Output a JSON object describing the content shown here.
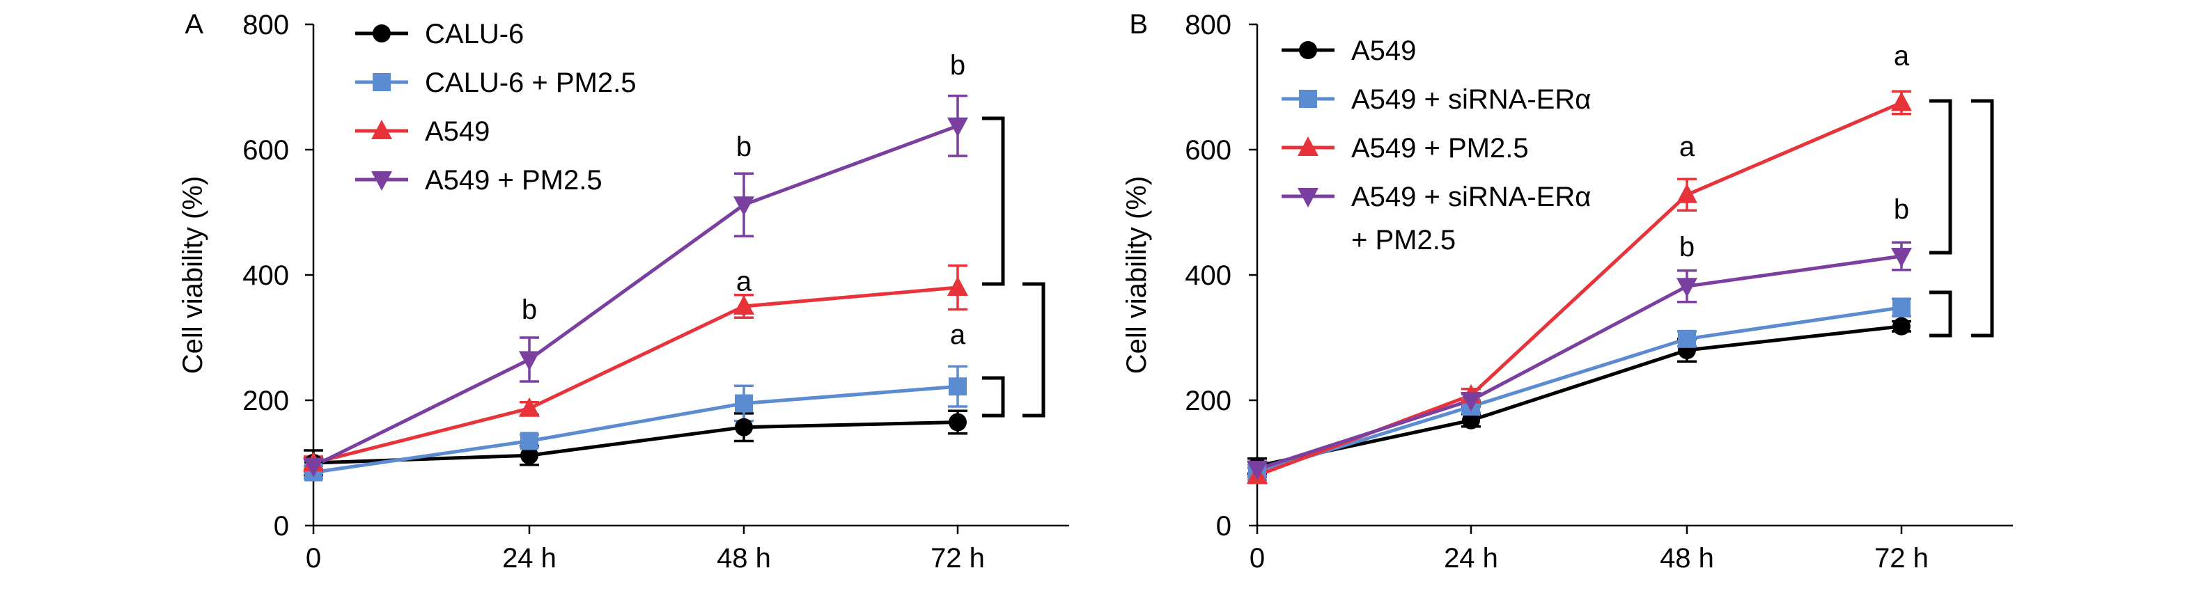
{
  "chart_data": [
    {
      "type": "line",
      "panel_label": "A",
      "ylabel": "Cell viability (%)",
      "xlabel": "",
      "categories": [
        "0",
        "24 h",
        "48 h",
        "72 h"
      ],
      "y_ticks": [
        "0",
        "200",
        "400",
        "600",
        "800"
      ],
      "ylim": [
        0,
        800
      ],
      "grid": false,
      "legend_position": "top-left",
      "series": [
        {
          "name": "CALU-6",
          "marker": "circle",
          "color": "#000000",
          "values": [
            100,
            112,
            157,
            165
          ],
          "errors": [
            20,
            15,
            22,
            18
          ]
        },
        {
          "name": "CALU-6 + PM2.5",
          "marker": "square",
          "color": "#5b8bd0",
          "values": [
            85,
            135,
            195,
            222
          ],
          "errors": [
            10,
            10,
            28,
            32
          ]
        },
        {
          "name": "A549",
          "marker": "triangle-up",
          "color": "#e8333b",
          "values": [
            100,
            187,
            350,
            380
          ],
          "errors": [
            10,
            10,
            18,
            35
          ]
        },
        {
          "name": "A549 + PM2.5",
          "marker": "triangle-down",
          "color": "#7b3fa0",
          "values": [
            95,
            265,
            512,
            638
          ],
          "errors": [
            10,
            35,
            50,
            48
          ]
        }
      ],
      "annotations": [
        {
          "text": "b",
          "x": "24 h",
          "y": 330
        },
        {
          "text": "b",
          "x": "48 h",
          "y": 590
        },
        {
          "text": "a",
          "x": "48 h",
          "y": 375
        },
        {
          "text": "b",
          "x": "72 h",
          "y": 720
        },
        {
          "text": "a",
          "x": "72 h",
          "y": 290
        }
      ],
      "brackets": [
        {
          "y_from": 638,
          "y_to": 385
        },
        {
          "y_from": 385,
          "y_to": 170
        },
        {
          "y_from": 230,
          "y_to": 170
        }
      ]
    },
    {
      "type": "line",
      "panel_label": "B",
      "ylabel": "Cell viability (%)",
      "xlabel": "",
      "categories": [
        "0",
        "24 h",
        "48 h",
        "72 h"
      ],
      "y_ticks": [
        "0",
        "200",
        "400",
        "600",
        "800"
      ],
      "ylim": [
        0,
        800
      ],
      "grid": false,
      "legend_position": "top-left",
      "series": [
        {
          "name": "A549",
          "marker": "circle",
          "color": "#000000",
          "values": [
            95,
            168,
            280,
            318
          ],
          "errors": [
            12,
            10,
            18,
            8
          ]
        },
        {
          "name": "A549 + siRNA-ERα",
          "marker": "square",
          "color": "#5b8bd0",
          "values": [
            85,
            190,
            298,
            348
          ],
          "errors": [
            12,
            10,
            12,
            14
          ]
        },
        {
          "name": "A549 + PM2.5",
          "marker": "triangle-up",
          "color": "#e8333b",
          "values": [
            80,
            208,
            528,
            675
          ],
          "errors": [
            12,
            10,
            25,
            18
          ]
        },
        {
          "name": "A549 + siRNA-ERα + PM2.5",
          "marker": "triangle-down",
          "color": "#7b3fa0",
          "values": [
            90,
            200,
            382,
            430
          ],
          "errors": [
            12,
            10,
            25,
            22
          ]
        }
      ],
      "legend_lines": [
        [
          "A549"
        ],
        [
          "A549 + siRNA-ERα"
        ],
        [
          "A549 + PM2.5"
        ],
        [
          "A549 + siRNA-ERα",
          "+ PM2.5"
        ]
      ],
      "annotations": [
        {
          "text": "a",
          "x": "48 h",
          "y": 590
        },
        {
          "text": "b",
          "x": "48 h",
          "y": 430
        },
        {
          "text": "a",
          "x": "72 h",
          "y": 735
        },
        {
          "text": "b",
          "x": "72 h",
          "y": 490
        }
      ],
      "brackets": [
        {
          "y_from": 675,
          "y_to": 432
        },
        {
          "y_from": 675,
          "y_to": 305
        },
        {
          "y_from": 360,
          "y_to": 305
        }
      ]
    }
  ]
}
